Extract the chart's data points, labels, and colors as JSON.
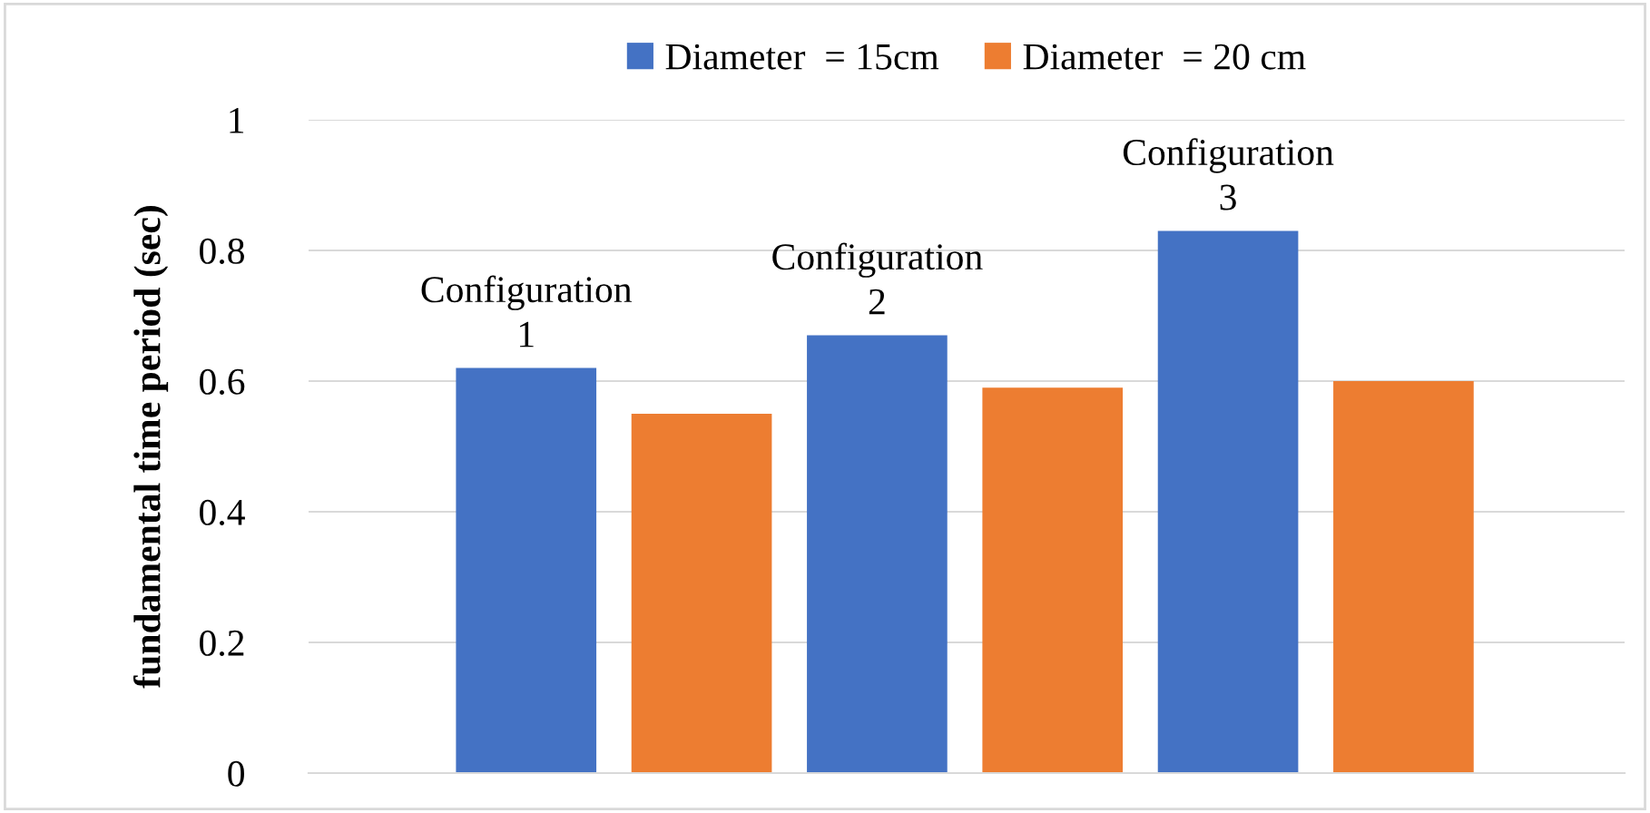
{
  "chart_data": {
    "type": "bar",
    "ylabel": "fundamental time period (sec)",
    "categories": [
      "Configuration\n1",
      "Configuration\n2",
      "Configuration\n3"
    ],
    "series": [
      {
        "name": "Diameter  = 15cm",
        "color": "#4472c4",
        "values": [
          0.62,
          0.67,
          0.83
        ]
      },
      {
        "name": "Diameter  = 20 cm",
        "color": "#ed7d31",
        "values": [
          0.55,
          0.59,
          0.6
        ]
      }
    ],
    "ylim": [
      0,
      1
    ],
    "yticks": [
      0,
      0.2,
      0.4,
      0.6,
      0.8,
      1
    ],
    "grid": "y",
    "legend": "top"
  }
}
